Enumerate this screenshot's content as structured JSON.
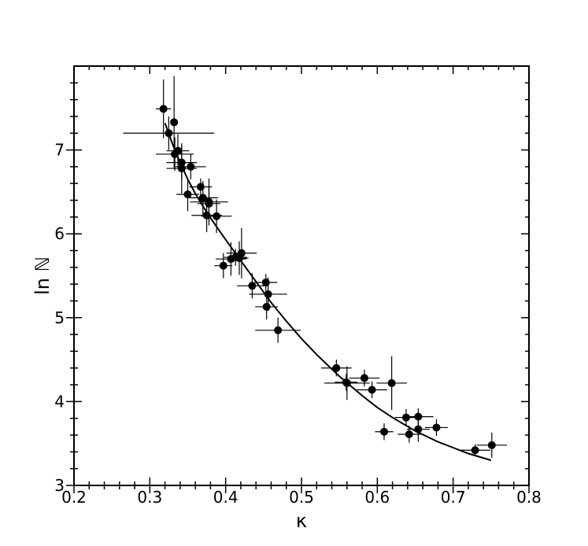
{
  "chart_data": {
    "type": "scatter",
    "title": "",
    "xlabel": "κ",
    "ylabel": "ln ℕ",
    "xlim": [
      0.2,
      0.8
    ],
    "ylim": [
      3,
      8
    ],
    "x_ticks": [
      0.2,
      0.3,
      0.4,
      0.5,
      0.6,
      0.7,
      0.8
    ],
    "x_tick_labels": [
      "0.2",
      "0.3",
      "0.4",
      "0.5",
      "0.6",
      "0.7",
      "0.8"
    ],
    "y_ticks": [
      3,
      4,
      5,
      6,
      7
    ],
    "y_tick_labels": [
      "3",
      "4",
      "5",
      "6",
      "7"
    ],
    "grid": false,
    "colors": {
      "points": "#000000",
      "fit": "#000000"
    },
    "series": [
      {
        "kind": "points-with-errorbars",
        "points": [
          {
            "x": 0.318,
            "y": 7.49,
            "xerr": 0.01,
            "yerr": 0.35
          },
          {
            "x": 0.325,
            "y": 7.2,
            "xerr": 0.06,
            "yerr": 0.2
          },
          {
            "x": 0.332,
            "y": 7.33,
            "xerr": 0.005,
            "yerr": 0.55
          },
          {
            "x": 0.333,
            "y": 6.95,
            "xerr": 0.025,
            "yerr": 0.2
          },
          {
            "x": 0.337,
            "y": 6.99,
            "xerr": 0.015,
            "yerr": 0.2
          },
          {
            "x": 0.342,
            "y": 6.85,
            "xerr": 0.02,
            "yerr": 0.2
          },
          {
            "x": 0.342,
            "y": 6.78,
            "xerr": 0.02,
            "yerr": 0.3
          },
          {
            "x": 0.35,
            "y": 6.47,
            "xerr": 0.015,
            "yerr": 0.2
          },
          {
            "x": 0.354,
            "y": 6.8,
            "xerr": 0.02,
            "yerr": 0.15
          },
          {
            "x": 0.367,
            "y": 6.56,
            "xerr": 0.015,
            "yerr": 0.1
          },
          {
            "x": 0.37,
            "y": 6.43,
            "xerr": 0.02,
            "yerr": 0.2
          },
          {
            "x": 0.375,
            "y": 6.22,
            "xerr": 0.02,
            "yerr": 0.2
          },
          {
            "x": 0.378,
            "y": 6.36,
            "xerr": 0.015,
            "yerr": 0.2
          },
          {
            "x": 0.378,
            "y": 6.38,
            "xerr": 0.025,
            "yerr": 0.28
          },
          {
            "x": 0.388,
            "y": 6.21,
            "xerr": 0.02,
            "yerr": 0.2
          },
          {
            "x": 0.397,
            "y": 5.62,
            "xerr": 0.012,
            "yerr": 0.15
          },
          {
            "x": 0.407,
            "y": 5.7,
            "xerr": 0.02,
            "yerr": 0.2
          },
          {
            "x": 0.413,
            "y": 5.72,
            "xerr": 0.015,
            "yerr": 0.1
          },
          {
            "x": 0.418,
            "y": 5.71,
            "xerr": 0.012,
            "yerr": 0.2
          },
          {
            "x": 0.421,
            "y": 5.77,
            "xerr": 0.02,
            "yerr": 0.3
          },
          {
            "x": 0.435,
            "y": 5.38,
            "xerr": 0.02,
            "yerr": 0.15
          },
          {
            "x": 0.453,
            "y": 5.42,
            "xerr": 0.015,
            "yerr": 0.1
          },
          {
            "x": 0.454,
            "y": 5.13,
            "xerr": 0.015,
            "yerr": 0.15
          },
          {
            "x": 0.456,
            "y": 5.28,
            "xerr": 0.025,
            "yerr": 0.2
          },
          {
            "x": 0.469,
            "y": 4.85,
            "xerr": 0.03,
            "yerr": 0.15
          },
          {
            "x": 0.546,
            "y": 4.4,
            "xerr": 0.02,
            "yerr": 0.1
          },
          {
            "x": 0.559,
            "y": 4.23,
            "xerr": 0.015,
            "yerr": 0.1
          },
          {
            "x": 0.56,
            "y": 4.22,
            "xerr": 0.03,
            "yerr": 0.2
          },
          {
            "x": 0.583,
            "y": 4.28,
            "xerr": 0.02,
            "yerr": 0.1
          },
          {
            "x": 0.593,
            "y": 4.14,
            "xerr": 0.02,
            "yerr": 0.1
          },
          {
            "x": 0.619,
            "y": 4.22,
            "xerr": 0.02,
            "yerr": 0.32
          },
          {
            "x": 0.609,
            "y": 3.64,
            "xerr": 0.012,
            "yerr": 0.1
          },
          {
            "x": 0.638,
            "y": 3.81,
            "xerr": 0.015,
            "yerr": 0.1
          },
          {
            "x": 0.642,
            "y": 3.61,
            "xerr": 0.015,
            "yerr": 0.1
          },
          {
            "x": 0.654,
            "y": 3.82,
            "xerr": 0.02,
            "yerr": 0.1
          },
          {
            "x": 0.654,
            "y": 3.67,
            "xerr": 0.015,
            "yerr": 0.15
          },
          {
            "x": 0.678,
            "y": 3.69,
            "xerr": 0.015,
            "yerr": 0.1
          },
          {
            "x": 0.729,
            "y": 3.42,
            "xerr": 0.02,
            "yerr": 0.07
          },
          {
            "x": 0.751,
            "y": 3.48,
            "xerr": 0.02,
            "yerr": 0.15
          }
        ]
      },
      {
        "kind": "fit-curve",
        "x": [
          0.32,
          0.33,
          0.34,
          0.35,
          0.36,
          0.37,
          0.38,
          0.39,
          0.4,
          0.42,
          0.44,
          0.46,
          0.48,
          0.5,
          0.52,
          0.55,
          0.58,
          0.6,
          0.62,
          0.65,
          0.68,
          0.7,
          0.72,
          0.75
        ],
        "y": [
          7.32,
          7.07,
          6.85,
          6.65,
          6.48,
          6.33,
          6.19,
          6.06,
          5.93,
          5.68,
          5.43,
          5.18,
          4.96,
          4.75,
          4.56,
          4.3,
          4.07,
          3.93,
          3.81,
          3.65,
          3.52,
          3.45,
          3.38,
          3.3
        ]
      }
    ]
  }
}
